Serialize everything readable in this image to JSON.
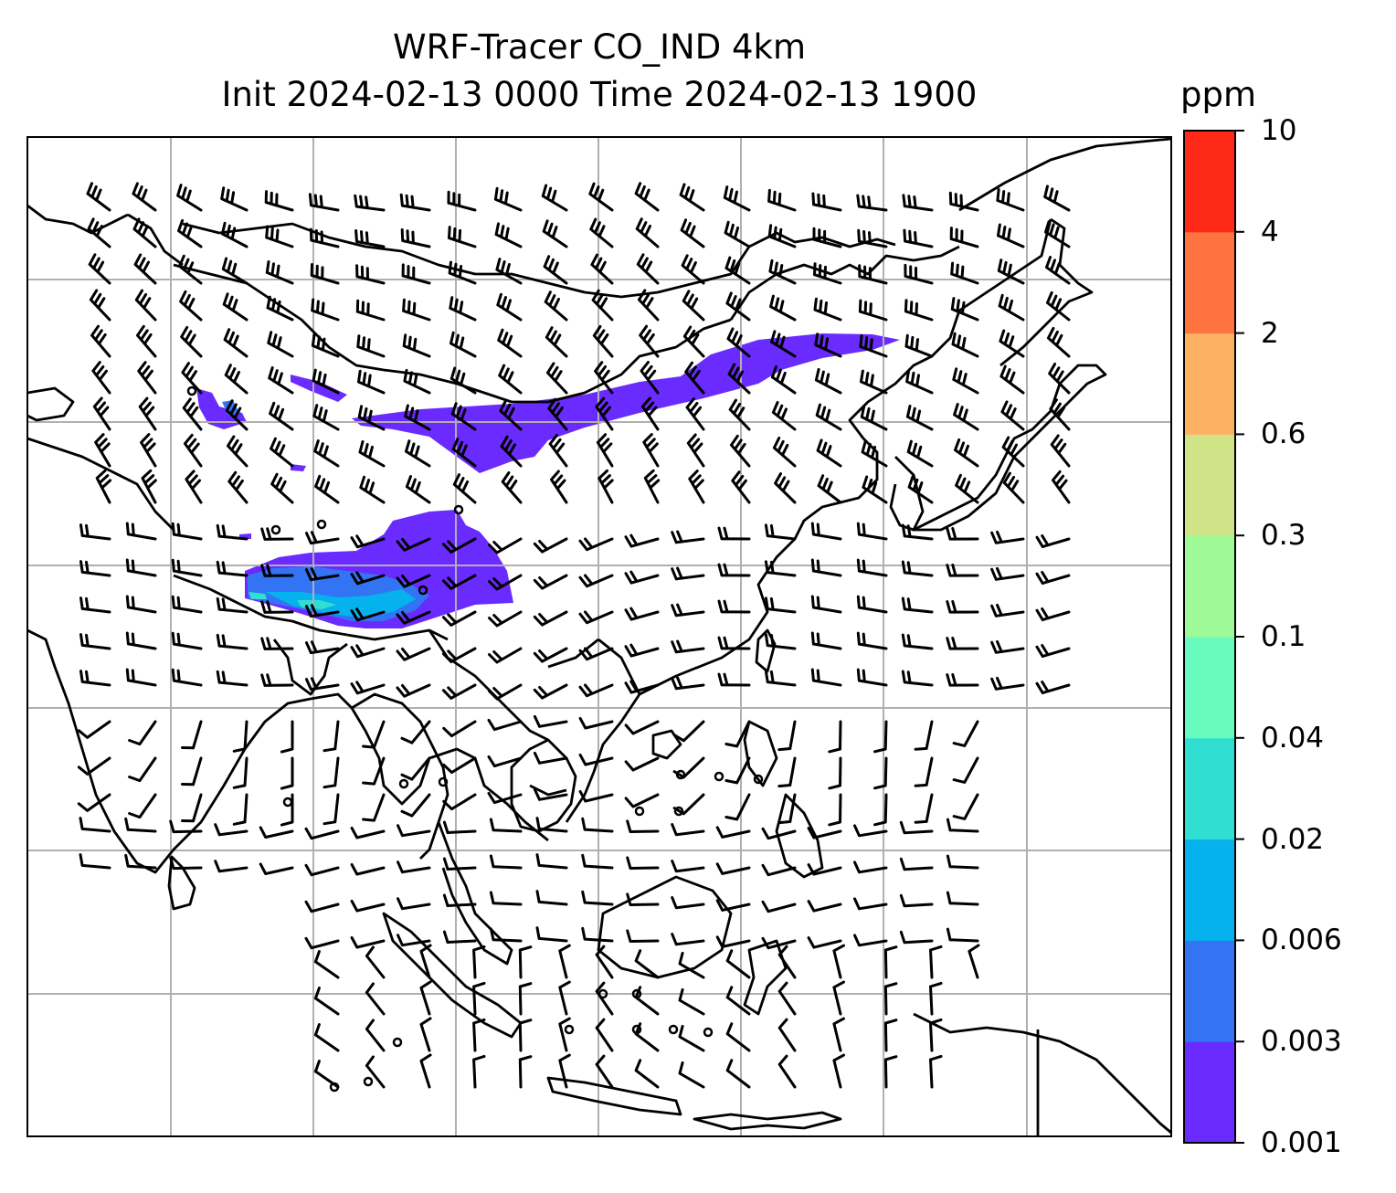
{
  "title": {
    "line1": "WRF-Tracer CO_IND 4km",
    "line2": "Init 2024-02-13 0000 Time 2024-02-13 1900"
  },
  "colorbar": {
    "units": "ppm",
    "levels": [
      "0.001",
      "0.003",
      "0.006",
      "0.02",
      "0.04",
      "0.1",
      "0.3",
      "0.6",
      "2",
      "4",
      "10"
    ],
    "colors": [
      "#6a2bff",
      "#3374f5",
      "#05b2ee",
      "#30dfd2",
      "#69fbbd",
      "#9dfa96",
      "#d0e386",
      "#fdb162",
      "#ff7340",
      "#ff2918"
    ]
  },
  "map": {
    "projection_note": "WRF domain over South and East Asia",
    "gridlines": true,
    "overlays": [
      "coastlines",
      "country-borders",
      "wind-barbs",
      "co-tracer-shading"
    ]
  },
  "plumes": [
    {
      "name": "tibet-plateau-plume",
      "max_level": "0.04"
    },
    {
      "name": "northern-china-band",
      "max_level": "0.003"
    }
  ]
}
